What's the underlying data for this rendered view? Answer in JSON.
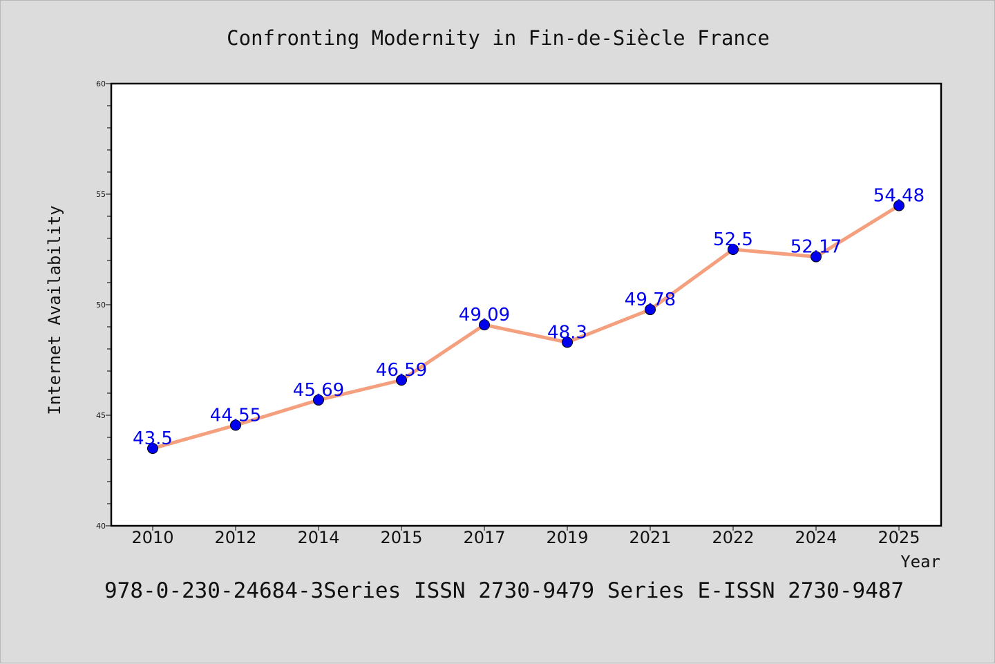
{
  "chart_data": {
    "type": "line",
    "title": "Confronting Modernity in Fin-de-Siècle France",
    "xlabel": "Year",
    "ylabel": "Internet Availability",
    "categories": [
      "2010",
      "2012",
      "2014",
      "2015",
      "2017",
      "2019",
      "2021",
      "2022",
      "2024",
      "2025"
    ],
    "series": [
      {
        "values": [
          43.5,
          44.55,
          45.69,
          46.59,
          49.09,
          48.3,
          49.78,
          52.5,
          52.17,
          54.48
        ],
        "labels": [
          "43.5",
          "44.55",
          "45.69",
          "46.59",
          "49.09",
          "48.3",
          "49.78",
          "52.5",
          "52.17",
          "54.48"
        ]
      }
    ],
    "ylim": [
      40,
      60
    ],
    "yticks": [
      "40",
      "45",
      "50",
      "55",
      "60"
    ],
    "grid": false,
    "colors": {
      "line": "#f4a07f",
      "marker": "#0000ee",
      "data_label": "#0000ee",
      "background": "#dcdcdc",
      "plot_area": "#ffffff"
    }
  },
  "footer": {
    "text": "978-0-230-24684-3Series ISSN 2730-9479 Series E-ISSN 2730-9487"
  }
}
